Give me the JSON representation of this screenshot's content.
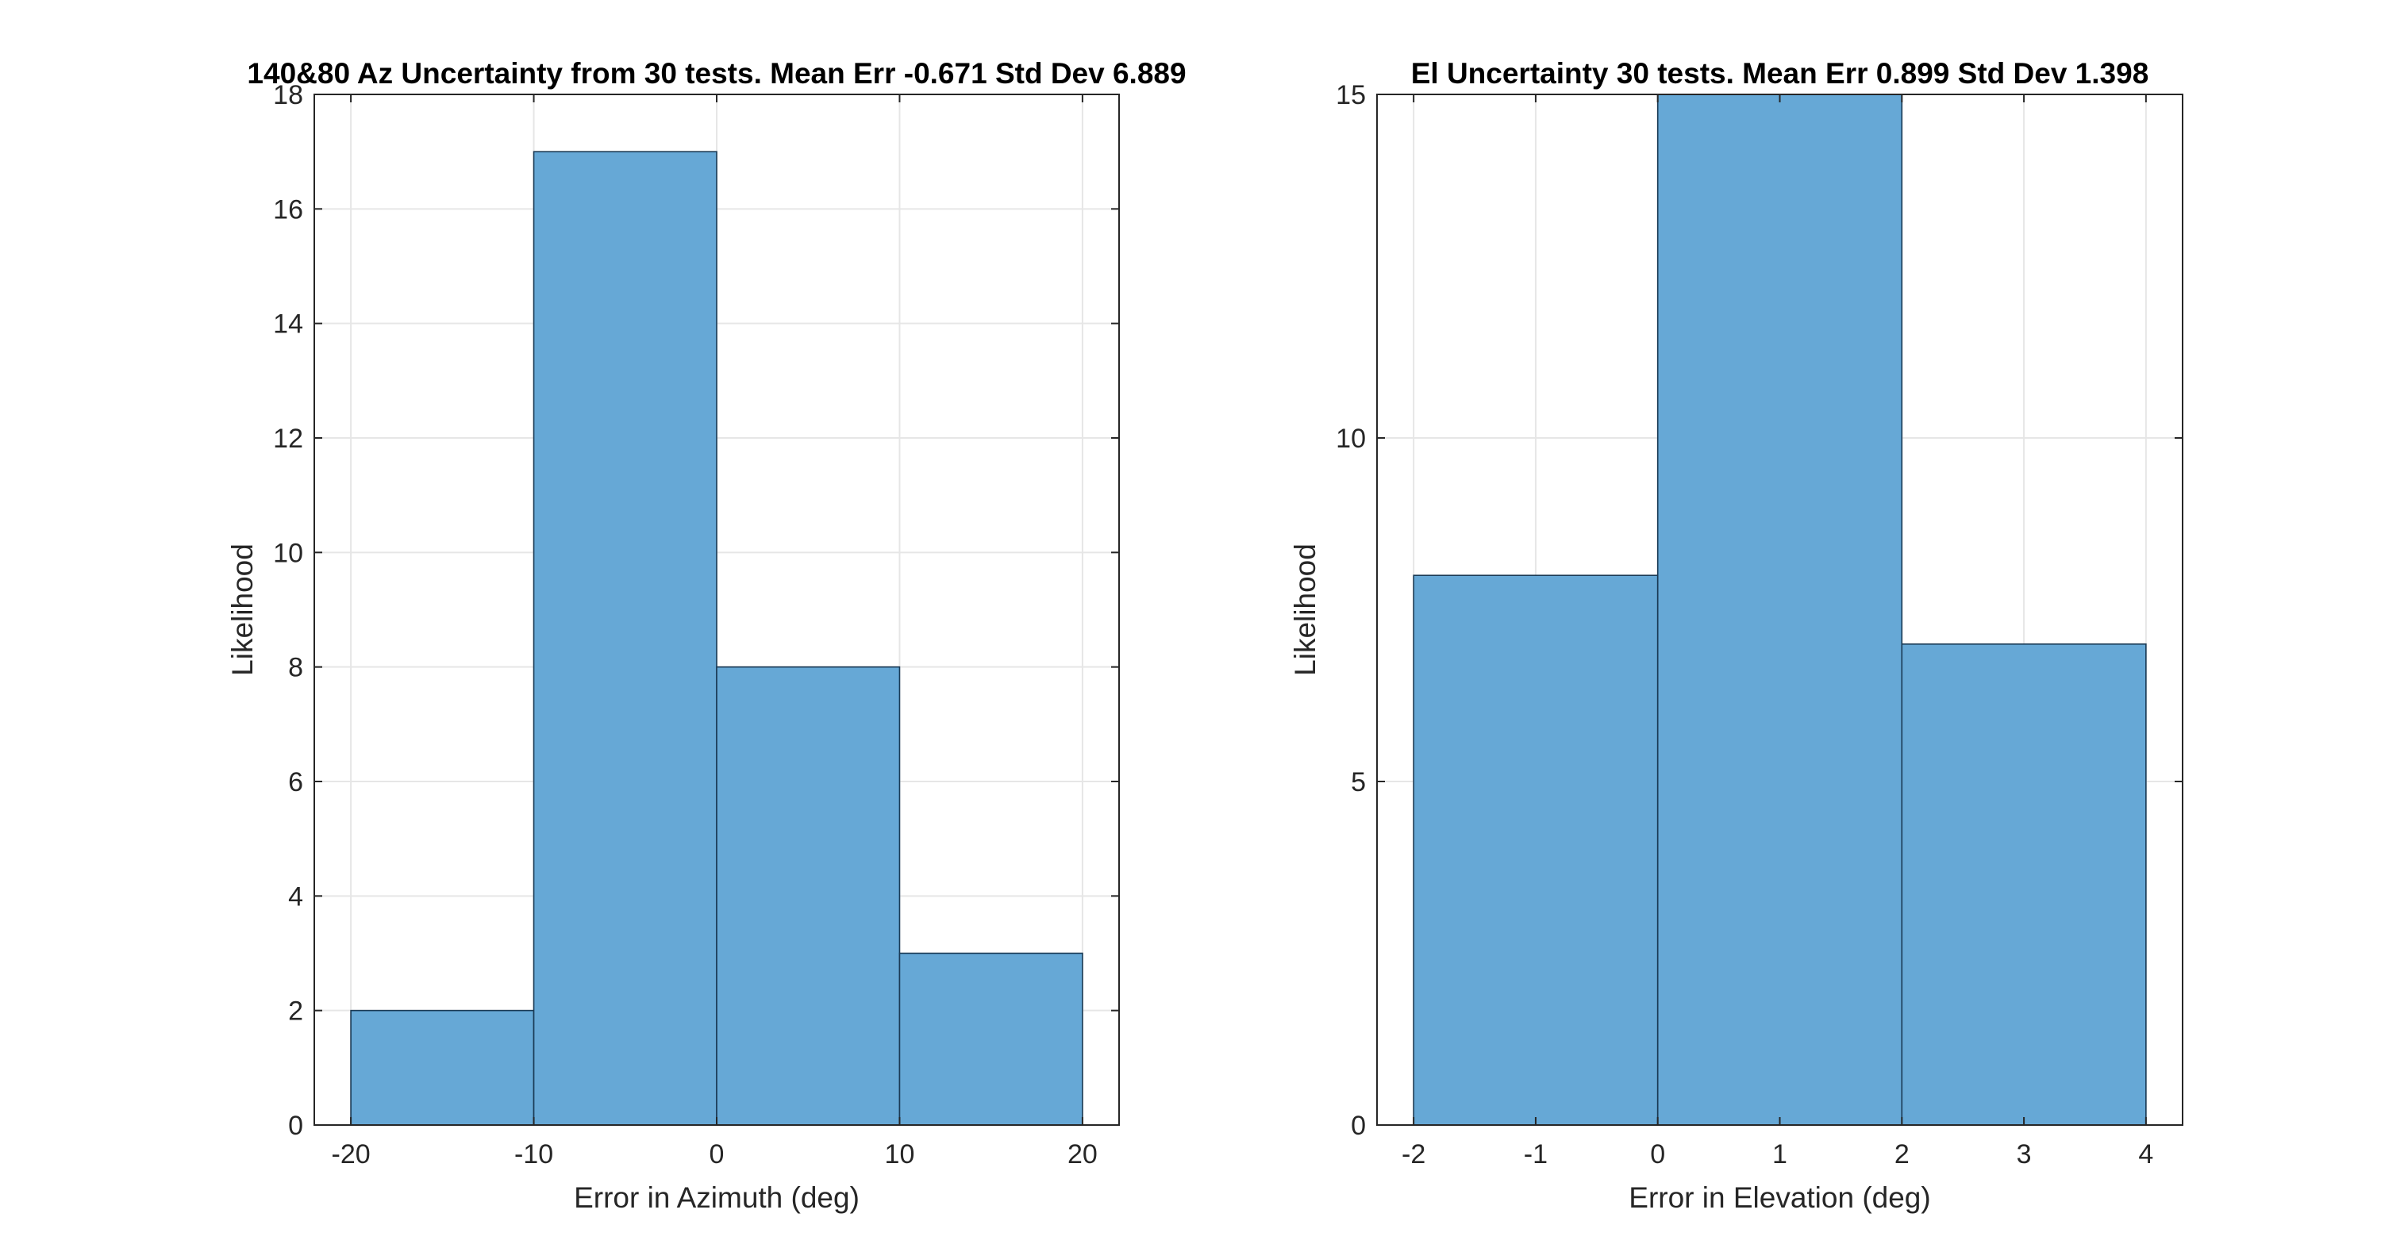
{
  "style": {
    "bar_color": "#66a8d6",
    "bar_edge": "#1a3a55",
    "grid_color": "#e6e6e6",
    "axis_color": "#262626"
  },
  "chart_data": [
    {
      "type": "bar",
      "subtype": "histogram",
      "title": "140&80 Az Uncertainty from 30 tests. Mean Err -0.671 Std Dev 6.889",
      "xlabel": "Error in Azimuth (deg)",
      "ylabel": "Likelihood",
      "bin_edges": [
        -20,
        -10,
        0,
        10,
        20
      ],
      "values": [
        2,
        17,
        8,
        3
      ],
      "xlim": [
        -22,
        22
      ],
      "ylim": [
        0,
        18
      ],
      "xticks": [
        -20,
        -10,
        0,
        10,
        20
      ],
      "yticks": [
        0,
        2,
        4,
        6,
        8,
        10,
        12,
        14,
        16,
        18
      ],
      "grid": true
    },
    {
      "type": "bar",
      "subtype": "histogram",
      "title": "El Uncertainty 30 tests. Mean Err 0.899 Std Dev 1.398",
      "xlabel": "Error in Elevation (deg)",
      "ylabel": "Likelihood",
      "bin_edges": [
        -2,
        0,
        2,
        4
      ],
      "values": [
        8,
        15,
        7
      ],
      "xlim": [
        -2.3,
        4.3
      ],
      "ylim": [
        0,
        15
      ],
      "xticks": [
        -2,
        -1,
        0,
        1,
        2,
        3,
        4
      ],
      "yticks": [
        0,
        5,
        10,
        15
      ],
      "grid": true
    }
  ]
}
